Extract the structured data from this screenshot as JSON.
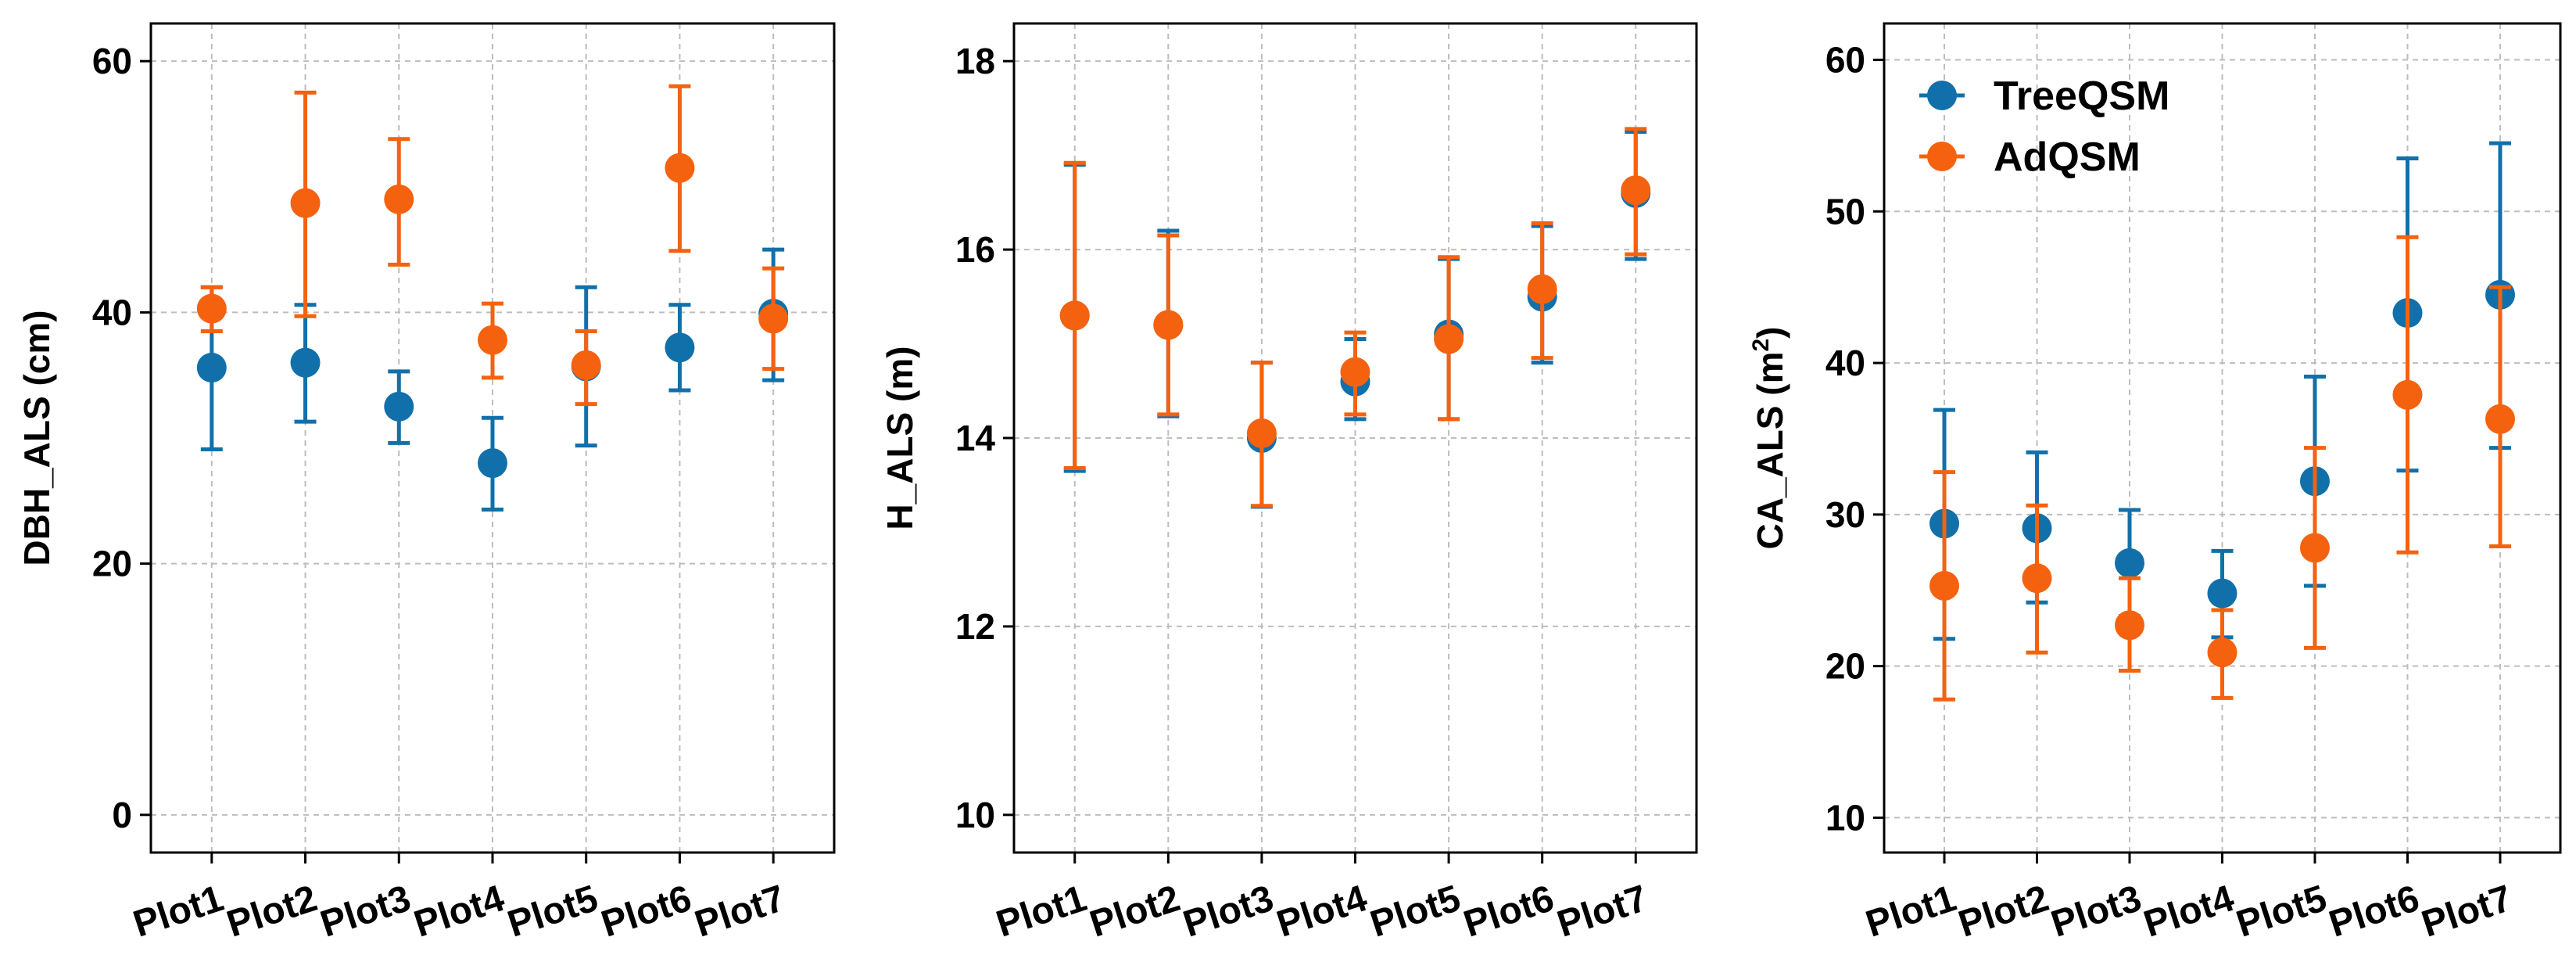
{
  "colors": {
    "treeqsm": "#1170AA",
    "adqsm": "#F5620F",
    "grid": "#BDBDBD",
    "axis": "#000000"
  },
  "legend": {
    "placement": "top-left",
    "panel_index": 2,
    "entries": [
      "TreeQSM",
      "AdQSM"
    ]
  },
  "chart_data": [
    {
      "type": "scatter",
      "subtype": "errorbar",
      "ylabel": "DBH_ALS (cm)",
      "ylim": [
        -3,
        63
      ],
      "yticks": [
        0,
        20,
        40,
        60
      ],
      "grid": true,
      "categories": [
        "Plot1",
        "Plot2",
        "Plot3",
        "Plot4",
        "Plot5",
        "Plot6",
        "Plot7"
      ],
      "series": [
        {
          "name": "TreeQSM",
          "values": [
            35.6,
            36.0,
            32.5,
            28.0,
            35.7,
            37.2,
            39.9
          ],
          "lower": [
            29.1,
            31.3,
            29.6,
            24.3,
            29.4,
            33.8,
            34.6
          ],
          "upper": [
            42.0,
            40.6,
            35.3,
            31.6,
            42.0,
            40.6,
            45.0
          ]
        },
        {
          "name": "AdQSM",
          "values": [
            40.3,
            48.7,
            49.0,
            37.8,
            35.8,
            51.5,
            39.5
          ],
          "lower": [
            38.5,
            39.7,
            43.8,
            34.8,
            32.7,
            44.9,
            35.5
          ],
          "upper": [
            42.0,
            57.5,
            53.8,
            40.7,
            38.5,
            58.0,
            43.5
          ]
        }
      ]
    },
    {
      "type": "scatter",
      "subtype": "errorbar",
      "ylabel": "H_ALS (m)",
      "ylim": [
        9.6,
        18.4
      ],
      "yticks": [
        10,
        12,
        14,
        16,
        18
      ],
      "grid": true,
      "categories": [
        "Plot1",
        "Plot2",
        "Plot3",
        "Plot4",
        "Plot5",
        "Plot6",
        "Plot7"
      ],
      "series": [
        {
          "name": "TreeQSM",
          "values": [
            15.3,
            15.2,
            14.0,
            14.6,
            15.1,
            15.5,
            16.6
          ],
          "lower": [
            13.65,
            14.23,
            13.27,
            14.2,
            14.2,
            14.8,
            15.9
          ],
          "upper": [
            16.9,
            16.2,
            14.8,
            15.05,
            15.9,
            16.25,
            17.25
          ]
        },
        {
          "name": "AdQSM",
          "values": [
            15.3,
            15.2,
            14.05,
            14.7,
            15.05,
            15.58,
            16.63
          ],
          "lower": [
            13.68,
            14.25,
            13.28,
            14.25,
            14.2,
            14.85,
            15.95
          ],
          "upper": [
            16.92,
            16.15,
            14.8,
            15.12,
            15.92,
            16.28,
            17.28
          ]
        }
      ]
    },
    {
      "type": "scatter",
      "subtype": "errorbar",
      "ylabel": "CA_ALS (m^2)",
      "ylim": [
        7.7,
        62.4
      ],
      "yticks": [
        10,
        20,
        30,
        40,
        50,
        60
      ],
      "grid": true,
      "categories": [
        "Plot1",
        "Plot2",
        "Plot3",
        "Plot4",
        "Plot5",
        "Plot6",
        "Plot7"
      ],
      "series": [
        {
          "name": "TreeQSM",
          "values": [
            29.4,
            29.1,
            26.8,
            24.8,
            32.2,
            43.3,
            44.5
          ],
          "lower": [
            21.8,
            24.2,
            23.3,
            21.9,
            25.3,
            32.9,
            34.4
          ],
          "upper": [
            36.9,
            34.1,
            30.3,
            27.6,
            39.1,
            53.5,
            54.5
          ]
        },
        {
          "name": "AdQSM",
          "values": [
            25.3,
            25.8,
            22.7,
            20.9,
            27.8,
            37.9,
            36.3
          ],
          "lower": [
            17.8,
            20.9,
            19.7,
            17.9,
            21.2,
            27.5,
            27.9
          ],
          "upper": [
            32.8,
            30.6,
            25.8,
            23.7,
            34.4,
            48.3,
            45.0
          ]
        }
      ]
    }
  ]
}
